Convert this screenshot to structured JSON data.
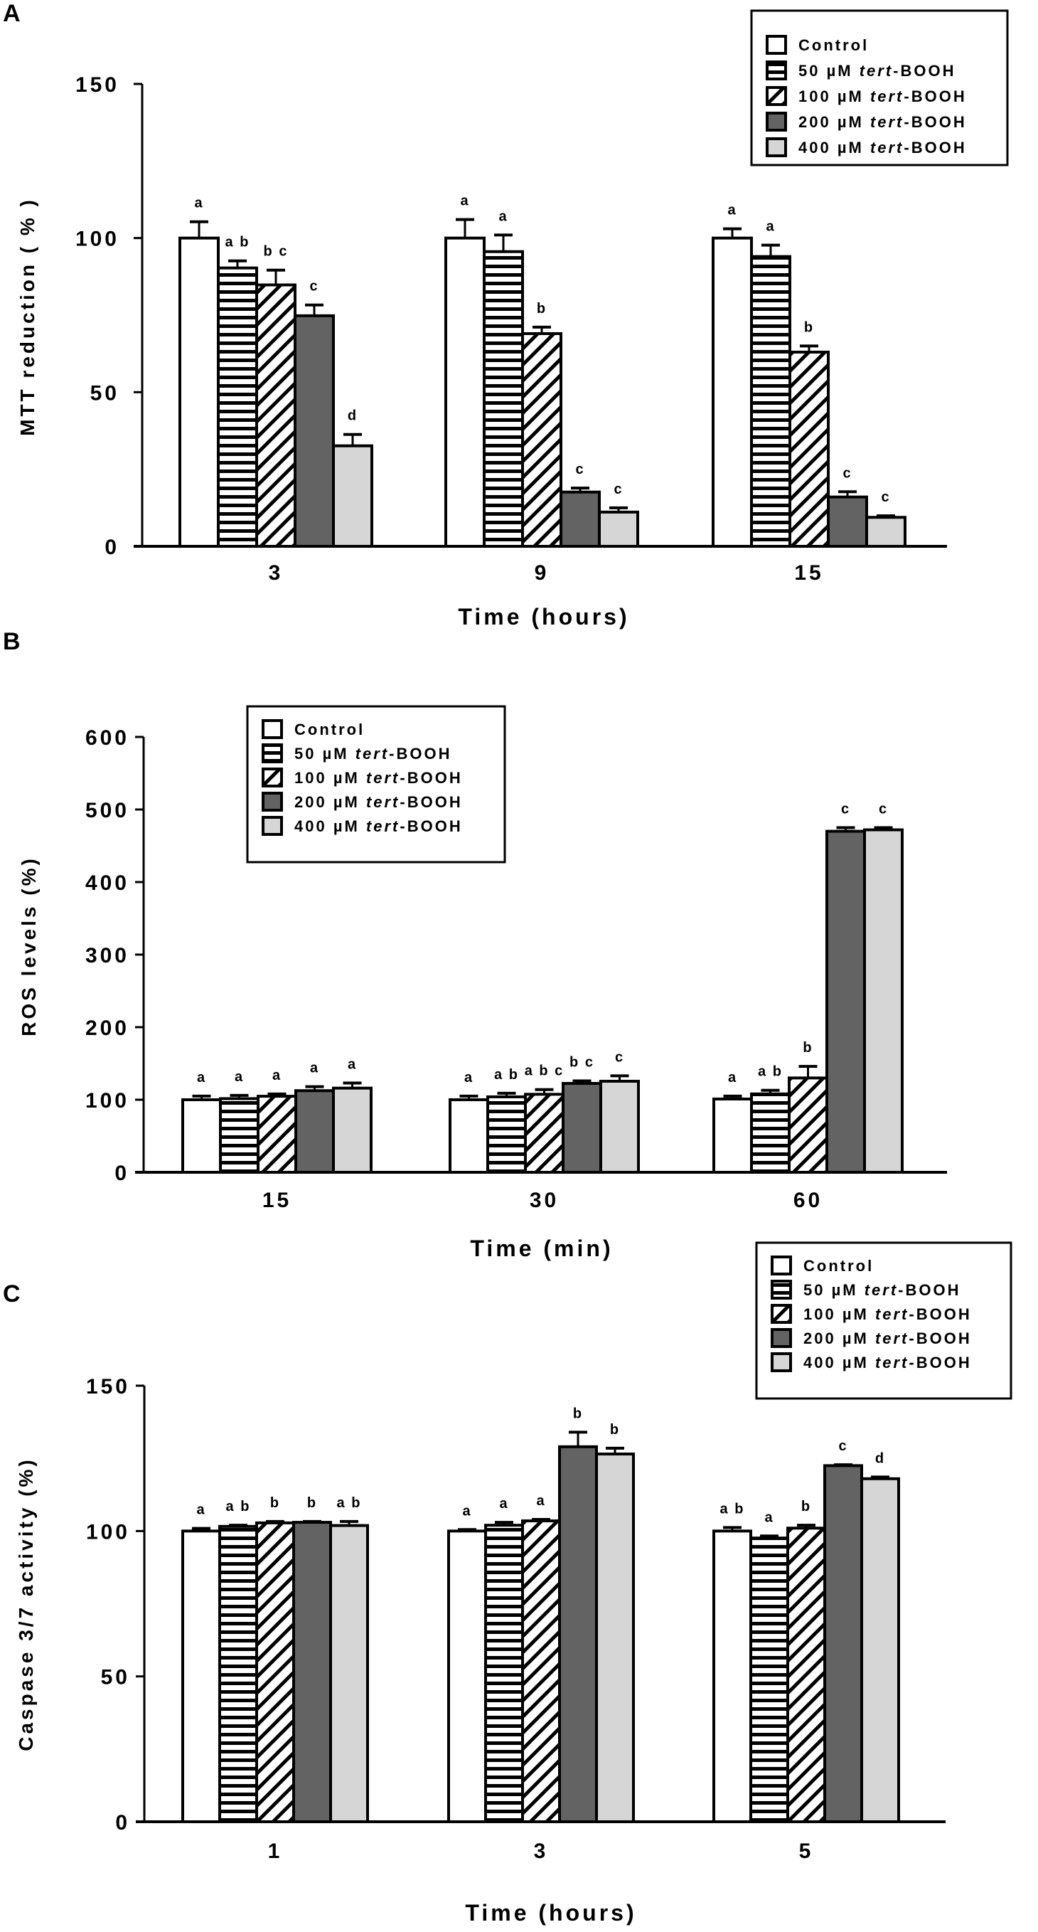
{
  "figure": {
    "series_styles": [
      {
        "name": "Control",
        "fill": "#ffffff",
        "pattern": "none"
      },
      {
        "name": "50 µM tert-BOOH",
        "fill": "#ffffff",
        "pattern": "horizontal-lines"
      },
      {
        "name": "100 µM tert-BOOH",
        "fill": "#ffffff",
        "pattern": "diagonal-lines"
      },
      {
        "name": "200 µM tert-BOOH",
        "fill": "#636363",
        "pattern": "none"
      },
      {
        "name": "400 µM tert-BOOH",
        "fill": "#d6d6d6",
        "pattern": "none"
      }
    ],
    "legend": {
      "items": [
        {
          "prefix": "Control",
          "italic": "",
          "suffix": ""
        },
        {
          "prefix": "50 µM ",
          "italic": "tert",
          "suffix": "-BOOH"
        },
        {
          "prefix": "100 µM ",
          "italic": "tert",
          "suffix": "-BOOH"
        },
        {
          "prefix": "200 µM ",
          "italic": "tert",
          "suffix": "-BOOH"
        },
        {
          "prefix": "400 µM ",
          "italic": "tert",
          "suffix": "-BOOH"
        }
      ]
    }
  },
  "chart_data": [
    {
      "panel": "A",
      "type": "bar",
      "title": "",
      "xlabel": "Time (hours)",
      "ylabel": "MTT reduction ( % )",
      "ylim": [
        0,
        150
      ],
      "yticks": [
        0,
        50,
        100,
        150
      ],
      "categories": [
        "3",
        "9",
        "15"
      ],
      "legend_position": "top-right",
      "grid": false,
      "series": [
        {
          "name": "Control",
          "values": [
            100,
            100,
            100
          ],
          "errors": [
            5.3,
            6,
            3
          ],
          "labels": [
            "a",
            "a",
            "a"
          ]
        },
        {
          "name": "50 µM tert-BOOH",
          "values": [
            90.3,
            95.6,
            94
          ],
          "errors": [
            2.3,
            5.4,
            3.7
          ],
          "labels": [
            "a b",
            "a",
            "a"
          ]
        },
        {
          "name": "100 µM tert-BOOH",
          "values": [
            84.8,
            69,
            63
          ],
          "errors": [
            4.8,
            2.1,
            2
          ],
          "labels": [
            "b c",
            "b",
            "b"
          ]
        },
        {
          "name": "200 µM tert-BOOH",
          "values": [
            74.8,
            17.6,
            16
          ],
          "errors": [
            3.5,
            1.3,
            1.7
          ],
          "labels": [
            "c",
            "c",
            "c"
          ]
        },
        {
          "name": "400 µM tert-BOOH",
          "values": [
            32.6,
            11.1,
            9.4
          ],
          "errors": [
            3.7,
            1.4,
            0.5
          ],
          "labels": [
            "d",
            "c",
            "c"
          ]
        }
      ]
    },
    {
      "panel": "B",
      "type": "bar",
      "title": "",
      "xlabel": "Time (min)",
      "ylabel": "ROS levels (%)",
      "ylim": [
        0,
        600
      ],
      "yticks": [
        0,
        100,
        200,
        300,
        400,
        500,
        600
      ],
      "categories": [
        "15",
        "30",
        "60"
      ],
      "legend_position": "top-left",
      "grid": false,
      "series": [
        {
          "name": "Control",
          "values": [
            100,
            100,
            101
          ],
          "errors": [
            5,
            5,
            4
          ],
          "labels": [
            "a",
            "a",
            "a"
          ]
        },
        {
          "name": "50 µM tert-BOOH",
          "values": [
            101.5,
            104,
            108
          ],
          "errors": [
            4.5,
            5,
            5
          ],
          "labels": [
            "a",
            "a b",
            "a b"
          ]
        },
        {
          "name": "100 µM tert-BOOH",
          "values": [
            104.8,
            107.5,
            130
          ],
          "errors": [
            3.2,
            6.5,
            16
          ],
          "labels": [
            "a",
            "a b c",
            "b"
          ]
        },
        {
          "name": "200 µM tert-BOOH",
          "values": [
            112.5,
            122.5,
            470
          ],
          "errors": [
            5.5,
            3.5,
            5
          ],
          "labels": [
            "a",
            "b c",
            "c"
          ]
        },
        {
          "name": "400 µM tert-BOOH",
          "values": [
            116,
            125.5,
            472
          ],
          "errors": [
            7,
            7.5,
            3
          ],
          "labels": [
            "a",
            "c",
            "c"
          ]
        }
      ]
    },
    {
      "panel": "C",
      "type": "bar",
      "title": "",
      "xlabel": "Time (hours)",
      "ylabel": "Caspase 3/7 activity (%)",
      "ylim": [
        0,
        150
      ],
      "yticks": [
        0,
        50,
        100,
        150
      ],
      "categories": [
        "1",
        "3",
        "5"
      ],
      "legend_position": "top-right",
      "grid": false,
      "series": [
        {
          "name": "Control",
          "values": [
            100,
            100,
            100
          ],
          "errors": [
            0.9,
            0.5,
            1.2
          ],
          "labels": [
            "a",
            "a",
            "a b"
          ]
        },
        {
          "name": "50 µM tert-BOOH",
          "values": [
            101.6,
            102,
            97.6
          ],
          "errors": [
            0.4,
            1,
            0.7
          ],
          "labels": [
            "a b",
            "a",
            "a"
          ]
        },
        {
          "name": "100 µM tert-BOOH",
          "values": [
            102.8,
            103.5,
            101
          ],
          "errors": [
            0.5,
            0.5,
            1
          ],
          "labels": [
            "b",
            "a",
            "b"
          ]
        },
        {
          "name": "200 µM tert-BOOH",
          "values": [
            103,
            129,
            122.5
          ],
          "errors": [
            0.3,
            5,
            0.3
          ],
          "labels": [
            "b",
            "b",
            "c"
          ]
        },
        {
          "name": "400 µM tert-BOOH",
          "values": [
            101.9,
            126.5,
            118
          ],
          "errors": [
            1.4,
            2,
            0.6
          ],
          "labels": [
            "a b",
            "b",
            "d"
          ]
        }
      ]
    }
  ]
}
